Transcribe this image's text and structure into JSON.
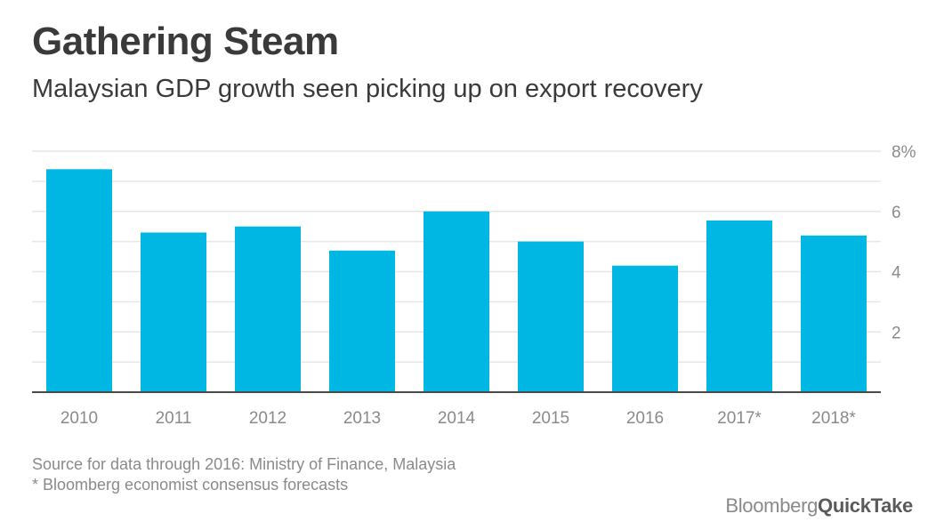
{
  "header": {
    "title": "Gathering Steam",
    "subtitle": "Malaysian GDP growth seen picking up on export recovery"
  },
  "chart_data": {
    "type": "bar",
    "categories": [
      "2010",
      "2011",
      "2012",
      "2013",
      "2014",
      "2015",
      "2016",
      "2017*",
      "2018*"
    ],
    "values": [
      7.4,
      5.3,
      5.5,
      4.7,
      6.0,
      5.0,
      4.2,
      5.7,
      5.2
    ],
    "y_tick_labels": [
      "8%",
      "6",
      "4",
      "2"
    ],
    "y_ticks": [
      8,
      6,
      4,
      2
    ],
    "ylim": [
      0,
      8
    ],
    "gridlines_at": [
      1,
      2,
      3,
      4,
      5,
      6,
      7,
      8
    ],
    "y_axis_side": "right",
    "grid": true,
    "bar_color": "#00b7e3",
    "xlabel": "",
    "ylabel": ""
  },
  "footnotes": {
    "source": "Source for data through 2016: Ministry of Finance, Malaysia",
    "forecast": "* Bloomberg economist consensus forecasts"
  },
  "brand": {
    "part1": "Bloomberg",
    "part2": "QuickTake"
  }
}
